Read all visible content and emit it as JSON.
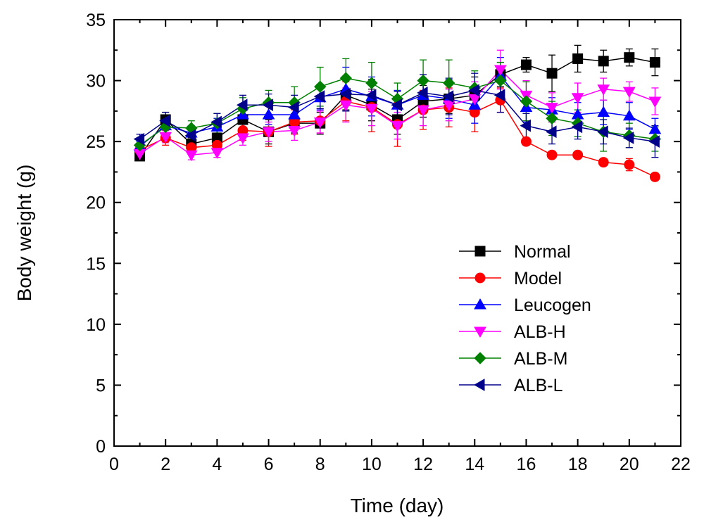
{
  "chart_data": {
    "type": "line",
    "xlabel": "Time (day)",
    "ylabel": "Body weight (g)",
    "xlim": [
      0,
      22
    ],
    "ylim": [
      0,
      35
    ],
    "xticks": [
      0,
      2,
      4,
      6,
      8,
      10,
      12,
      14,
      16,
      18,
      20,
      22
    ],
    "yticks": [
      0,
      5,
      10,
      15,
      20,
      25,
      30,
      35
    ],
    "x": [
      1,
      2,
      3,
      4,
      5,
      6,
      7,
      8,
      9,
      10,
      11,
      12,
      13,
      14,
      15,
      16,
      17,
      18,
      19,
      20,
      21
    ],
    "legend_position": "center-right",
    "grid": false,
    "series": [
      {
        "name": "Normal",
        "color": "#000000",
        "marker": "square",
        "values": [
          23.8,
          26.8,
          24.8,
          25.3,
          26.8,
          25.8,
          26.5,
          26.5,
          28.8,
          28.0,
          26.8,
          28.3,
          28.5,
          28.8,
          30.5,
          31.3,
          30.6,
          31.8,
          31.6,
          31.9,
          31.5
        ],
        "errors": [
          0.3,
          0.6,
          0.5,
          0.6,
          0.8,
          1.0,
          0.8,
          0.9,
          1.2,
          1.3,
          1.2,
          1.3,
          1.2,
          1.5,
          1.0,
          0.6,
          1.5,
          1.1,
          0.9,
          0.7,
          1.1
        ]
      },
      {
        "name": "Model",
        "color": "#ff0000",
        "marker": "circle",
        "values": [
          24.3,
          25.3,
          24.5,
          24.7,
          25.9,
          25.8,
          26.6,
          26.7,
          28.3,
          27.8,
          26.4,
          27.6,
          27.8,
          27.4,
          28.4,
          25.0,
          23.9,
          23.9,
          23.3,
          23.1,
          22.1
        ],
        "errors": [
          0.4,
          0.6,
          0.4,
          0.5,
          0.8,
          1.2,
          1.0,
          1.0,
          1.6,
          2.0,
          1.8,
          1.6,
          1.6,
          1.6,
          1.0,
          0.3,
          0.3,
          0.3,
          0.3,
          0.5,
          0.3
        ]
      },
      {
        "name": "Leucogen",
        "color": "#0000ff",
        "marker": "triangle-up",
        "values": [
          24.6,
          26.3,
          25.7,
          26.2,
          27.2,
          27.2,
          27.2,
          28.6,
          29.3,
          28.7,
          28.0,
          28.8,
          28.5,
          28.0,
          30.4,
          27.8,
          27.6,
          27.2,
          27.4,
          27.1,
          26.0
        ],
        "errors": [
          0.4,
          0.7,
          0.6,
          0.7,
          0.8,
          0.8,
          0.9,
          1.0,
          1.8,
          1.6,
          1.2,
          1.4,
          1.6,
          1.5,
          1.5,
          1.2,
          1.0,
          1.0,
          1.0,
          1.1,
          0.9
        ]
      },
      {
        "name": "ALB-H",
        "color": "#ff00ff",
        "marker": "triangle-down",
        "values": [
          24.0,
          25.4,
          23.9,
          24.1,
          25.3,
          25.8,
          25.9,
          26.6,
          28.0,
          27.7,
          26.3,
          27.6,
          28.0,
          28.5,
          30.9,
          28.8,
          27.8,
          28.6,
          29.3,
          29.1,
          28.3
        ],
        "errors": [
          0.3,
          0.5,
          0.4,
          0.4,
          0.6,
          0.8,
          0.8,
          0.9,
          1.4,
          1.4,
          1.1,
          1.3,
          1.3,
          1.4,
          1.6,
          1.2,
          1.2,
          1.2,
          0.9,
          0.8,
          1.1
        ]
      },
      {
        "name": "ALB-M",
        "color": "#008000",
        "marker": "diamond",
        "values": [
          24.7,
          26.2,
          26.1,
          26.5,
          27.7,
          28.2,
          28.2,
          29.5,
          30.2,
          29.8,
          28.5,
          30.0,
          29.8,
          29.4,
          30.0,
          28.3,
          26.9,
          26.5,
          25.8,
          25.5,
          25.2
        ],
        "errors": [
          0.4,
          0.7,
          0.6,
          0.8,
          0.9,
          1.0,
          1.3,
          1.6,
          1.6,
          1.7,
          1.3,
          1.7,
          1.9,
          1.4,
          1.5,
          1.6,
          1.4,
          1.1,
          1.6,
          1.0,
          1.0
        ]
      },
      {
        "name": "ALB-L",
        "color": "#00008b",
        "marker": "triangle-left",
        "values": [
          25.2,
          26.7,
          25.5,
          26.6,
          28.0,
          28.0,
          27.8,
          28.7,
          28.9,
          28.8,
          28.0,
          29.0,
          28.7,
          29.2,
          28.8,
          26.3,
          25.8,
          26.2,
          25.8,
          25.3,
          25.0
        ],
        "errors": [
          0.4,
          0.7,
          0.6,
          0.7,
          0.8,
          0.9,
          1.0,
          1.0,
          1.4,
          1.3,
          1.1,
          1.5,
          1.5,
          1.4,
          1.4,
          1.0,
          1.0,
          1.0,
          1.0,
          0.8,
          1.3
        ]
      }
    ]
  }
}
